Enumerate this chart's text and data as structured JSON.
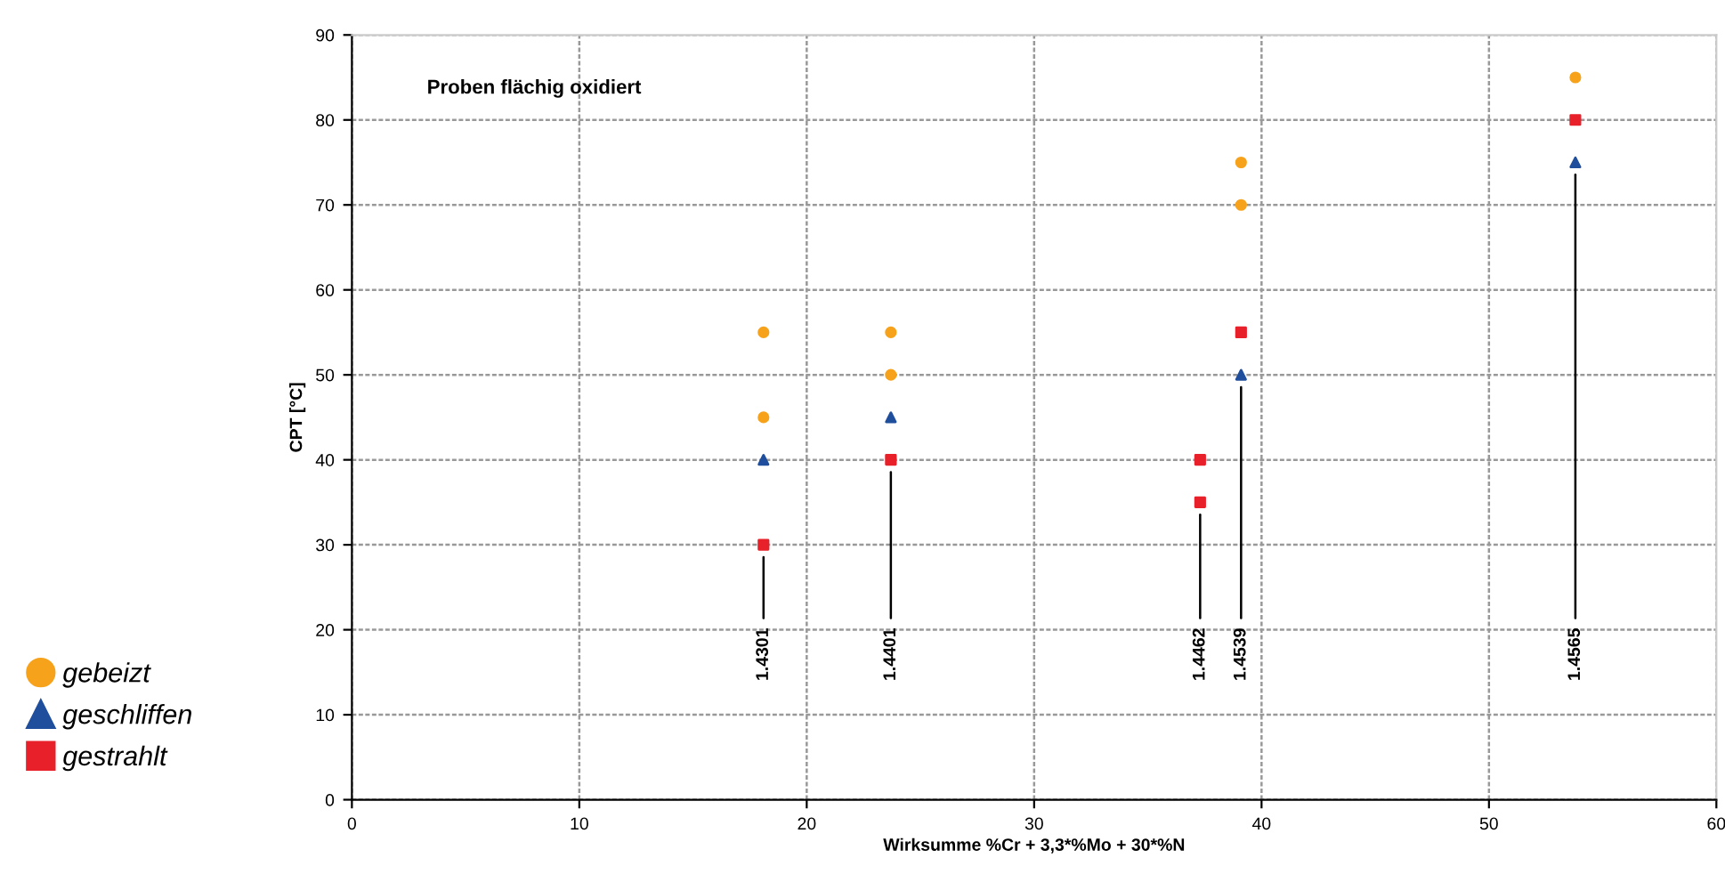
{
  "chart_data": {
    "type": "scatter",
    "title": "Proben flächig oxidiert",
    "xlabel": "Wirksumme %Cr + 3,3*%Mo + 30*%N",
    "ylabel": "CPT [°C]",
    "xlim": [
      0,
      60
    ],
    "xticks": [
      0,
      10,
      20,
      30,
      40,
      50,
      60
    ],
    "ylim": [
      0,
      90
    ],
    "yticks": [
      0,
      10,
      20,
      30,
      40,
      50,
      60,
      70,
      80,
      90
    ],
    "grid": true,
    "legend": "left",
    "series": [
      {
        "name": "gebeizt",
        "color": "#f7a21b",
        "marker": "circle",
        "x": [
          18.1,
          18.1,
          23.7,
          23.7,
          39.1,
          39.1,
          53.8
        ],
        "values": [
          55,
          45,
          55,
          50,
          75,
          70,
          85
        ]
      },
      {
        "name": "geschliffen",
        "color": "#1f4e9c",
        "marker": "triangle",
        "x": [
          18.1,
          23.7,
          39.1,
          53.8
        ],
        "values": [
          40,
          45,
          50,
          75
        ]
      },
      {
        "name": "gestrahlt",
        "color": "#e8202a",
        "marker": "square",
        "x": [
          18.1,
          23.7,
          37.3,
          37.3,
          39.1,
          53.8
        ],
        "values": [
          30,
          40,
          40,
          35,
          55,
          80
        ]
      }
    ],
    "annotations": [
      {
        "text": "1.4301",
        "x": 18.1,
        "y": 30
      },
      {
        "text": "1.4401",
        "x": 23.7,
        "y": 40
      },
      {
        "text": "1.4462",
        "x": 37.3,
        "y": 35
      },
      {
        "text": "1.4539",
        "x": 39.1,
        "y": 50
      },
      {
        "text": "1.4565",
        "x": 53.8,
        "y": 75
      }
    ]
  }
}
